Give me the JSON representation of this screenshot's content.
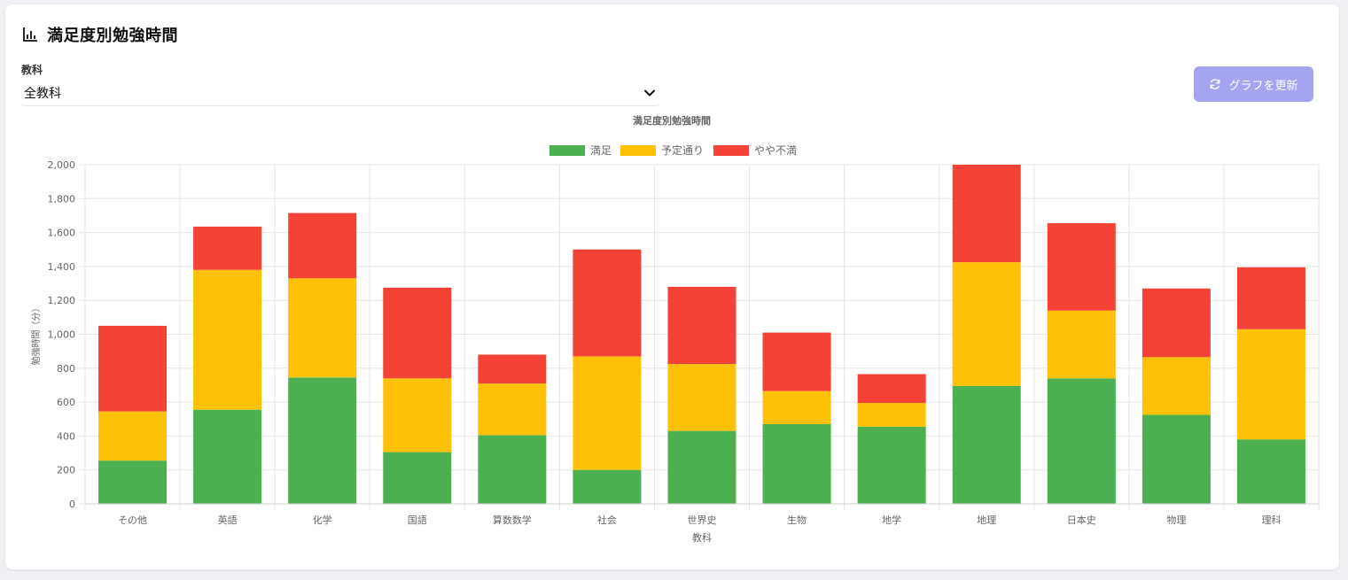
{
  "header": {
    "title": "満足度別勉強時間",
    "icon": "bar-chart-icon"
  },
  "filter": {
    "label": "教科",
    "selected": "全教科"
  },
  "refresh_button": {
    "label": "グラフを更新",
    "icon": "refresh-icon"
  },
  "chart_data": {
    "type": "bar",
    "stacked": true,
    "title": "満足度別勉強時間",
    "xlabel": "教科",
    "ylabel": "勉強時間（分）",
    "ylim": [
      0,
      2000
    ],
    "yticks": [
      0,
      200,
      400,
      600,
      800,
      1000,
      1200,
      1400,
      1600,
      1800,
      2000
    ],
    "ytick_labels": [
      "0",
      "200",
      "400",
      "600",
      "800",
      "1,000",
      "1,200",
      "1,400",
      "1,600",
      "1,800",
      "2,000"
    ],
    "legend_position": "top-center",
    "grid": true,
    "categories": [
      "その他",
      "英語",
      "化学",
      "国語",
      "算数数学",
      "社会",
      "世界史",
      "生物",
      "地学",
      "地理",
      "日本史",
      "物理",
      "理科"
    ],
    "series": [
      {
        "name": "満足",
        "color": "#4caf50",
        "values": [
          255,
          555,
          745,
          305,
          405,
          200,
          430,
          470,
          455,
          695,
          740,
          525,
          380
        ]
      },
      {
        "name": "予定通り",
        "color": "#ffc107",
        "values": [
          290,
          825,
          585,
          435,
          305,
          670,
          395,
          195,
          140,
          730,
          400,
          340,
          650
        ]
      },
      {
        "name": "やや不満",
        "color": "#f44336",
        "values": [
          505,
          255,
          385,
          535,
          170,
          630,
          455,
          345,
          170,
          575,
          515,
          405,
          365
        ]
      }
    ]
  }
}
